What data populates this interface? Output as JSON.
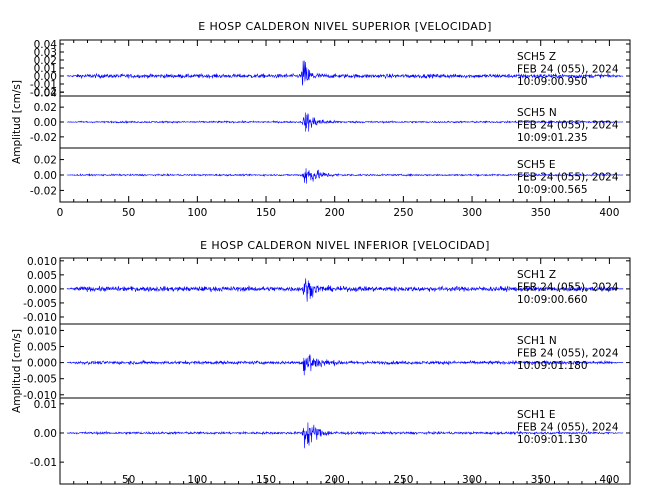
{
  "chart_data": [
    {
      "type": "line",
      "title": "E HOSP CALDERON NIVEL SUPERIOR [VELOCIDAD]",
      "ylabel": "Amplitud [cm/s]",
      "xlabel": "",
      "xlim": [
        0,
        415
      ],
      "x_ticks": [
        "0",
        "50",
        "100",
        "150",
        "200",
        "250",
        "300",
        "350",
        "400"
      ],
      "color": "#0000ff",
      "traces": [
        {
          "ylim": [
            -0.025,
            0.045
          ],
          "y_ticks": [
            "0.04",
            "0.03",
            "0.02",
            "0.01",
            "0.00",
            "-0.01",
            "-0.02"
          ],
          "noise": 0.0045,
          "event_peak": 0.043,
          "event_time": 177,
          "event_decay": 4,
          "info": [
            "SCH5   Z",
            "FEB 24 (055), 2024",
            "10:09:00.950"
          ]
        },
        {
          "ylim": [
            -0.035,
            0.035
          ],
          "y_ticks": [
            "0.04",
            "0.02",
            "0.00",
            "-0.02"
          ],
          "noise": 0.002,
          "event_peak": 0.032,
          "event_time": 178,
          "event_decay": 7,
          "info": [
            "SCH5   N",
            "FEB 24 (055), 2024",
            "10:09:01.235"
          ]
        },
        {
          "ylim": [
            -0.035,
            0.035
          ],
          "y_ticks": [
            "0.02",
            "0.00",
            "-0.02"
          ],
          "noise": 0.0018,
          "event_peak": 0.032,
          "event_time": 178,
          "event_decay": 8,
          "info": [
            "SCH5   E",
            "FEB 24 (055), 2024",
            "10:09:00.565"
          ]
        }
      ]
    },
    {
      "type": "line",
      "title": "E HOSP CALDERON NIVEL INFERIOR [VELOCIDAD]",
      "ylabel": "Amplitud [cm/s]",
      "xlabel": "",
      "xlim": [
        0,
        415
      ],
      "x_ticks": [
        "50",
        "100",
        "150",
        "200",
        "250",
        "300",
        "350",
        "400"
      ],
      "color": "#0000ff",
      "traces": [
        {
          "ylim": [
            -0.0125,
            0.011
          ],
          "y_ticks": [
            "0.010",
            "0.005",
            "0.000",
            "-0.005",
            "-0.010"
          ],
          "noise": 0.0016,
          "event_peak": 0.009,
          "event_time": 178,
          "event_decay": 5,
          "info": [
            "SCH1   Z",
            "FEB 24 (055), 2024",
            "10:09:00.660"
          ]
        },
        {
          "ylim": [
            -0.011,
            0.012
          ],
          "y_ticks": [
            "0.010",
            "0.005",
            "0.000",
            "-0.005",
            "-0.010"
          ],
          "noise": 0.0009,
          "event_peak": 0.011,
          "event_time": 178,
          "event_decay": 7,
          "info": [
            "SCH1   N",
            "FEB 24 (055), 2024",
            "10:09:01.180"
          ]
        },
        {
          "ylim": [
            -0.0175,
            0.012
          ],
          "y_ticks": [
            "0.01",
            "0.00",
            "-0.01"
          ],
          "noise": 0.0007,
          "event_peak": 0.0125,
          "event_time": 178,
          "event_decay": 7,
          "info": [
            "SCH1   E",
            "FEB 24 (055), 2024",
            "10:09:01.130"
          ]
        }
      ]
    }
  ]
}
